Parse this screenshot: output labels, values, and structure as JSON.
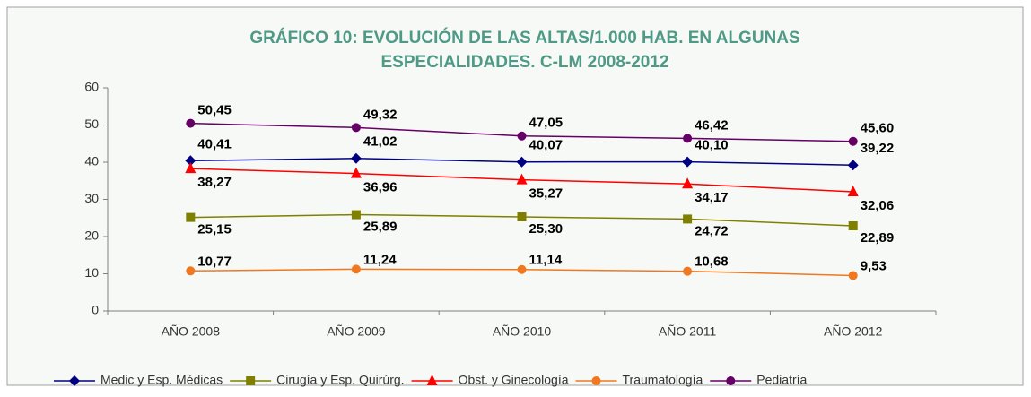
{
  "chart_data": {
    "type": "line",
    "title": "GRÁFICO 10: EVOLUCIÓN DE LAS ALTAS/1.000 HAB. EN ALGUNAS",
    "subtitle": "ESPECIALIDADES. C-LM 2008-2012",
    "categories": [
      "AÑO 2008",
      "AÑO 2009",
      "AÑO 2010",
      "AÑO 2011",
      "AÑO 2012"
    ],
    "ylim": [
      0,
      60
    ],
    "yticks": [
      0,
      10,
      20,
      30,
      40,
      50,
      60
    ],
    "grid": false,
    "legend": "bottom",
    "series": [
      {
        "name": "Medic y Esp. Médicas",
        "color": "#000080",
        "marker": "diamond",
        "values": [
          40.41,
          41.02,
          40.07,
          40.1,
          39.22
        ],
        "value_labels": [
          "40,41",
          "41,02",
          "40,07",
          "40,10",
          "39,22"
        ]
      },
      {
        "name": "Cirugía y Esp. Quirúrg.",
        "color": "#808000",
        "marker": "square",
        "values": [
          25.15,
          25.89,
          25.3,
          24.72,
          22.89
        ],
        "value_labels": [
          "25,15",
          "25,89",
          "25,30",
          "24,72",
          "22,89"
        ]
      },
      {
        "name": "Obst. y Ginecología",
        "color": "#ff0000",
        "marker": "triangle",
        "values": [
          38.27,
          36.96,
          35.27,
          34.17,
          32.06
        ],
        "value_labels": [
          "38,27",
          "36,96",
          "35,27",
          "34,17",
          "32,06"
        ]
      },
      {
        "name": "Traumatología",
        "color": "#f07820",
        "marker": "circle",
        "values": [
          10.77,
          11.24,
          11.14,
          10.68,
          9.53
        ],
        "value_labels": [
          "10,77",
          "11,24",
          "11,14",
          "10,68",
          "9,53"
        ]
      },
      {
        "name": "Pediatría",
        "color": "#660066",
        "marker": "circle",
        "values": [
          50.45,
          49.32,
          47.05,
          46.42,
          45.6
        ],
        "value_labels": [
          "50,45",
          "49,32",
          "47,05",
          "46,42",
          "45,60"
        ]
      }
    ]
  }
}
